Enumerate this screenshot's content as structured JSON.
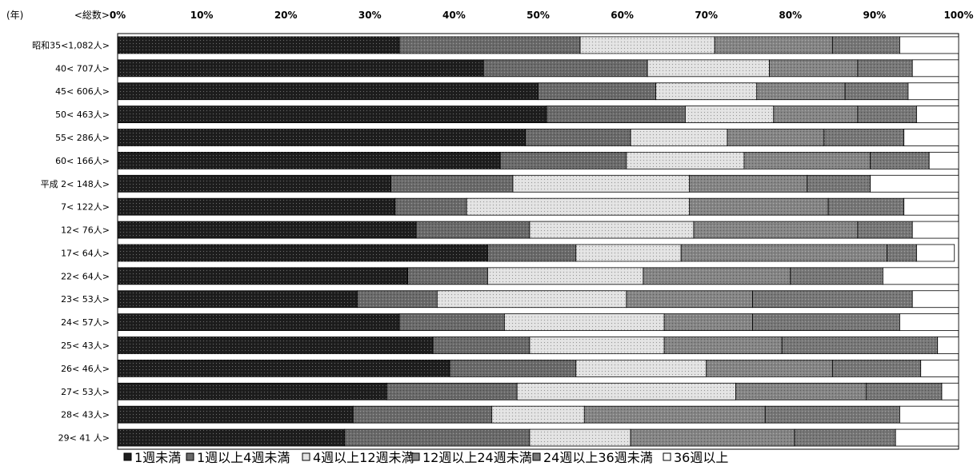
{
  "chart_data": {
    "type": "bar",
    "orientation": "horizontal",
    "stacked": true,
    "header_year": "(年)",
    "header_total": "<総数>",
    "categories": [
      "昭和35<1,082人>",
      "40< 707人>",
      "45< 606人>",
      "50< 463人>",
      "55< 286人>",
      "60< 166人>",
      "平成 2< 148人>",
      "7< 122人>",
      "12< 76人>",
      "17< 64人>",
      "22< 64人>",
      "23< 53人>",
      "24< 57人>",
      "25< 43人>",
      "26< 46人>",
      "27< 53人>",
      "28< 43人>",
      "29< 41 人>"
    ],
    "xlim": [
      0,
      100
    ],
    "x_ticks": [
      "0%",
      "10%",
      "20%",
      "30%",
      "40%",
      "50%",
      "60%",
      "70%",
      "80%",
      "90%",
      "100%"
    ],
    "grid": false,
    "legend_position": "bottom",
    "series": [
      {
        "name": "1週未満",
        "color": "#1e1e1e",
        "values": [
          33.5,
          43.5,
          50,
          51,
          48.5,
          45.5,
          32.5,
          33,
          35.5,
          44,
          34.5,
          28.5,
          33.5,
          37.5,
          39.5,
          32,
          28,
          27
        ]
      },
      {
        "name": "1週以上4週未満",
        "color": "#6a6a6a",
        "values": [
          21.5,
          19.5,
          14,
          16.5,
          12.5,
          15,
          14.5,
          8.5,
          13.5,
          10.5,
          9.5,
          9.5,
          12.5,
          11.5,
          15,
          15.5,
          16.5,
          22
        ]
      },
      {
        "name": "4週以上12週未満",
        "color": "#e2e2e2",
        "values": [
          16,
          14.5,
          12,
          10.5,
          11.5,
          14,
          21,
          26.5,
          19.5,
          12.5,
          18.5,
          22.5,
          19,
          16,
          15.5,
          26,
          11,
          12
        ]
      },
      {
        "name": "12週以上24週未満",
        "color": "#858585",
        "values": [
          14,
          10.5,
          10.5,
          10,
          11.5,
          15,
          14,
          16.5,
          19.5,
          24.5,
          17.5,
          15,
          10.5,
          14,
          15,
          15.5,
          21.5,
          19.5
        ]
      },
      {
        "name": "24週以上36週未満",
        "color": "#777777",
        "values": [
          8,
          6.5,
          7.5,
          7,
          9.5,
          7,
          7.5,
          9,
          6.5,
          3.5,
          11,
          19,
          17.5,
          18.5,
          10.5,
          9,
          16,
          12
        ]
      },
      {
        "name": "36週以上",
        "color": "#ffffff",
        "values": [
          7,
          5.5,
          6,
          5,
          6.5,
          3.5,
          10.5,
          6.5,
          5.5,
          4.5,
          9,
          5.5,
          7,
          2.5,
          4.5,
          2,
          7,
          7.5
        ]
      }
    ]
  }
}
